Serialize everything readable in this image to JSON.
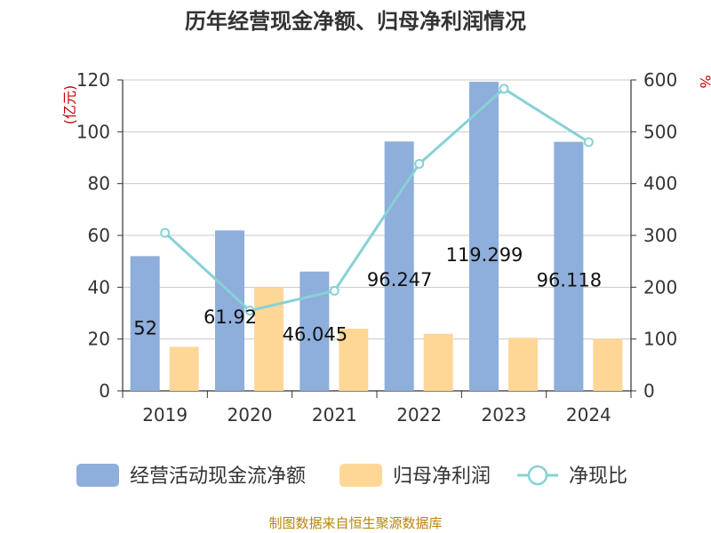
{
  "chart_data": {
    "type": "bar",
    "title": "历年经营现金净额、归母净利润情况",
    "source": "制图数据来自恒生聚源数据库",
    "categories": [
      "2019",
      "2020",
      "2021",
      "2022",
      "2023",
      "2024"
    ],
    "left_axis": {
      "unit_label": "(亿元)",
      "ylim": [
        0,
        120
      ],
      "ticks": [
        0,
        20,
        40,
        60,
        80,
        100,
        120
      ]
    },
    "right_axis": {
      "unit_label": "%",
      "ylim": [
        0,
        600
      ],
      "ticks": [
        0,
        100,
        200,
        300,
        400,
        500,
        600
      ]
    },
    "grid": true,
    "legend_position": "bottom",
    "series": [
      {
        "name": "经营活动现金流净额",
        "kind": "bar",
        "axis": "left",
        "color": "#8eaedb",
        "values": [
          52,
          61.92,
          46.045,
          96.247,
          119.299,
          96.118
        ],
        "labels": [
          "52",
          "61.92",
          "46.045",
          "96.247",
          "119.299",
          "96.118"
        ]
      },
      {
        "name": "归母净利润",
        "kind": "bar",
        "axis": "left",
        "color": "#fed797",
        "values": [
          17,
          40,
          24,
          22,
          20.5,
          20
        ]
      },
      {
        "name": "净现比",
        "kind": "line",
        "axis": "right",
        "color": "#87d1d6",
        "values": [
          305,
          155,
          193,
          438,
          583,
          480
        ]
      }
    ]
  }
}
